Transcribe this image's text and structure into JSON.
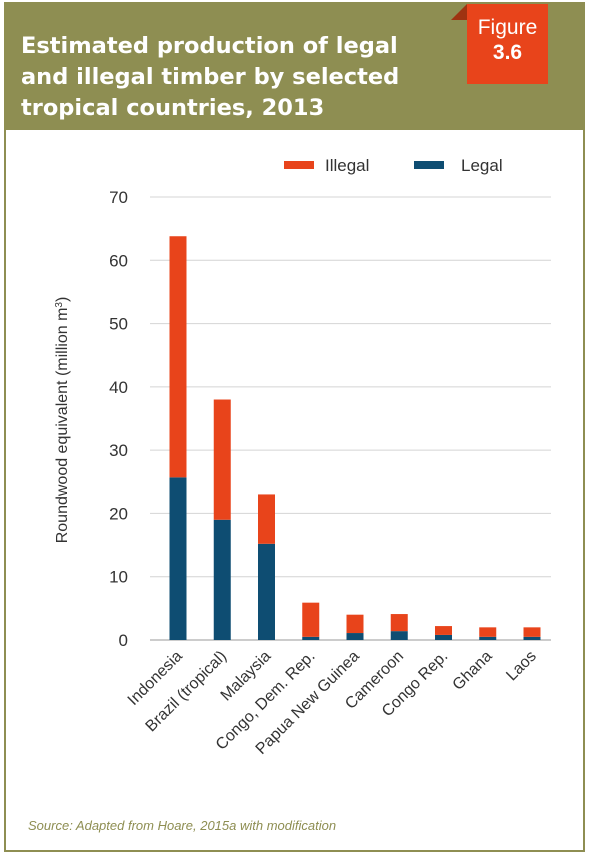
{
  "header": {
    "title": "Estimated production of legal and illegal timber by selected tropical countries, 2013",
    "figure_word": "Figure",
    "figure_number": "3.6"
  },
  "source": "Source: Adapted from Hoare, 2015a with modification",
  "colors": {
    "illegal": "#e8441b",
    "legal": "#0e4d72",
    "header": "#8e8e52"
  },
  "chart_data": {
    "type": "bar",
    "stacked": true,
    "categories": [
      "Indonesia",
      "Brazil (tropical)",
      "Malaysia",
      "Congo, Dem. Rep.",
      "Papua New Guinea",
      "Cameroon",
      "Congo Rep.",
      "Ghana",
      "Laos"
    ],
    "series": [
      {
        "name": "Legal",
        "values": [
          25.7,
          19,
          15.2,
          0.5,
          1.1,
          1.4,
          0.8,
          0.5,
          0.5
        ]
      },
      {
        "name": "Illegal",
        "values": [
          38.1,
          19,
          7.8,
          5.4,
          2.9,
          2.7,
          1.4,
          1.5,
          1.5
        ]
      }
    ],
    "ylabel_main": "Roundwood equivalent (million m",
    "ylabel_sup": "3",
    "ylabel_end": ")",
    "ylim": [
      0,
      70
    ],
    "yticks": [
      0,
      10,
      20,
      30,
      40,
      50,
      60,
      70
    ],
    "legend": {
      "items": [
        "Illegal",
        "Legal"
      ],
      "position": "top-right"
    },
    "grid": true
  }
}
